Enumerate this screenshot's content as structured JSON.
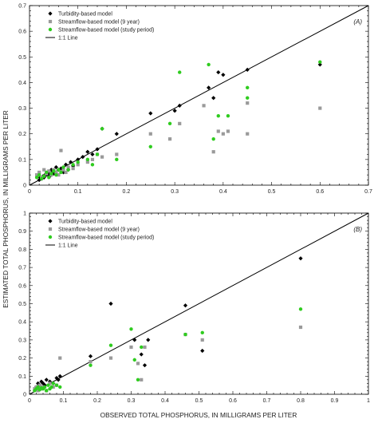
{
  "axis_titles": {
    "x": "OBSERVED TOTAL PHOSPHORUS, IN MILLIGRAMS PER LITER",
    "y": "ESTIMATED TOTAL PHOSPHORUS, IN MILLIGRAMS PER LITER"
  },
  "colors": {
    "turbidity": "#000000",
    "streamflow9": "#9a9a9a",
    "streamflowStudy": "#2fcc1f",
    "line": "#000000"
  },
  "chart_data": [
    {
      "type": "scatter",
      "panel_label": "(A)",
      "xlim": [
        0,
        0.7
      ],
      "ylim": [
        0,
        0.7
      ],
      "xticks": [
        "0",
        "0.1",
        "0.2",
        "0.3",
        "0.4",
        "0.5",
        "0.6",
        "0.7"
      ],
      "yticks": [
        "0",
        "0.1",
        "0.2",
        "0.3",
        "0.4",
        "0.5",
        "0.6",
        "0.7"
      ],
      "legend": {
        "position": "top-left",
        "entries": [
          "Turbidity-based model",
          "Streamflow-based model (9 year)",
          "Streamflow-based model (study period)",
          "1:1 Line"
        ]
      },
      "grid": false,
      "series": [
        {
          "name": "Turbidity-based model",
          "marker": "diamond",
          "x": [
            0.02,
            0.022,
            0.025,
            0.028,
            0.03,
            0.032,
            0.035,
            0.038,
            0.04,
            0.042,
            0.045,
            0.048,
            0.05,
            0.055,
            0.06,
            0.065,
            0.07,
            0.075,
            0.08,
            0.085,
            0.09,
            0.1,
            0.11,
            0.12,
            0.13,
            0.14,
            0.15,
            0.18,
            0.25,
            0.3,
            0.31,
            0.37,
            0.38,
            0.39,
            0.4,
            0.45,
            0.6
          ],
          "y": [
            0.02,
            0.03,
            0.025,
            0.035,
            0.03,
            0.04,
            0.045,
            0.04,
            0.05,
            0.035,
            0.06,
            0.05,
            0.045,
            0.07,
            0.06,
            0.065,
            0.05,
            0.08,
            0.06,
            0.09,
            0.075,
            0.1,
            0.11,
            0.13,
            0.12,
            0.14,
            0.22,
            0.2,
            0.28,
            0.29,
            0.31,
            0.38,
            0.34,
            0.44,
            0.43,
            0.45,
            0.47
          ]
        },
        {
          "name": "Streamflow-based model (9 year)",
          "marker": "square",
          "x": [
            0.015,
            0.02,
            0.025,
            0.03,
            0.035,
            0.04,
            0.045,
            0.05,
            0.055,
            0.06,
            0.065,
            0.07,
            0.075,
            0.08,
            0.09,
            0.1,
            0.12,
            0.13,
            0.14,
            0.15,
            0.18,
            0.25,
            0.29,
            0.31,
            0.36,
            0.38,
            0.39,
            0.4,
            0.41,
            0.45,
            0.45,
            0.6
          ],
          "y": [
            0.04,
            0.05,
            0.03,
            0.06,
            0.045,
            0.055,
            0.04,
            0.06,
            0.05,
            0.04,
            0.135,
            0.06,
            0.05,
            0.07,
            0.065,
            0.08,
            0.09,
            0.1,
            0.12,
            0.11,
            0.12,
            0.2,
            0.18,
            0.24,
            0.31,
            0.13,
            0.21,
            0.2,
            0.21,
            0.32,
            0.2,
            0.3
          ]
        },
        {
          "name": "Streamflow-based model (study period)",
          "marker": "circle",
          "x": [
            0.015,
            0.02,
            0.025,
            0.03,
            0.035,
            0.04,
            0.045,
            0.05,
            0.055,
            0.06,
            0.065,
            0.07,
            0.08,
            0.09,
            0.1,
            0.12,
            0.13,
            0.14,
            0.15,
            0.18,
            0.25,
            0.29,
            0.31,
            0.37,
            0.38,
            0.39,
            0.41,
            0.45,
            0.45,
            0.6
          ],
          "y": [
            0.03,
            0.04,
            0.025,
            0.035,
            0.05,
            0.03,
            0.045,
            0.055,
            0.04,
            0.06,
            0.05,
            0.07,
            0.06,
            0.08,
            0.09,
            0.1,
            0.08,
            0.12,
            0.22,
            0.1,
            0.15,
            0.24,
            0.44,
            0.47,
            0.18,
            0.27,
            0.27,
            0.38,
            0.34,
            0.48
          ]
        }
      ]
    },
    {
      "type": "scatter",
      "panel_label": "(B)",
      "xlim": [
        0,
        1
      ],
      "ylim": [
        0,
        1
      ],
      "xticks": [
        "0",
        "0.1",
        "0.2",
        "0.3",
        "0.4",
        "0.5",
        "0.6",
        "0.7",
        "0.8",
        "0.9",
        "1"
      ],
      "yticks": [
        "0",
        "0.1",
        "0.2",
        "0.3",
        "0.4",
        "0.5",
        "0.6",
        "0.7",
        "0.8",
        "0.9",
        "1"
      ],
      "legend": {
        "position": "top-left",
        "entries": [
          "Turbidity-based model",
          "Streamflow-based model (9 year)",
          "Streamflow-based model (study period)",
          "1:1 Line"
        ]
      },
      "grid": false,
      "series": [
        {
          "name": "Turbidity-based model",
          "marker": "diamond",
          "x": [
            0.02,
            0.025,
            0.03,
            0.035,
            0.04,
            0.045,
            0.05,
            0.06,
            0.07,
            0.08,
            0.085,
            0.09,
            0.18,
            0.24,
            0.31,
            0.33,
            0.34,
            0.35,
            0.46,
            0.51,
            0.8
          ],
          "y": [
            0.04,
            0.06,
            0.05,
            0.07,
            0.06,
            0.05,
            0.08,
            0.07,
            0.06,
            0.09,
            0.08,
            0.1,
            0.21,
            0.5,
            0.3,
            0.22,
            0.16,
            0.3,
            0.49,
            0.24,
            0.75
          ]
        },
        {
          "name": "Streamflow-based model (9 year)",
          "marker": "square",
          "x": [
            0.015,
            0.02,
            0.025,
            0.03,
            0.035,
            0.04,
            0.05,
            0.06,
            0.07,
            0.08,
            0.09,
            0.18,
            0.24,
            0.3,
            0.32,
            0.33,
            0.34,
            0.46,
            0.51,
            0.8
          ],
          "y": [
            0.03,
            0.04,
            0.02,
            0.05,
            0.03,
            0.04,
            0.02,
            0.06,
            0.04,
            0.05,
            0.2,
            0.18,
            0.2,
            0.26,
            0.17,
            0.08,
            0.26,
            0.33,
            0.3,
            0.37
          ]
        },
        {
          "name": "Streamflow-based model (study period)",
          "marker": "circle",
          "x": [
            0.015,
            0.02,
            0.025,
            0.03,
            0.035,
            0.04,
            0.045,
            0.05,
            0.055,
            0.06,
            0.065,
            0.07,
            0.08,
            0.09,
            0.18,
            0.24,
            0.3,
            0.31,
            0.32,
            0.33,
            0.46,
            0.51,
            0.8
          ],
          "y": [
            0.02,
            0.03,
            0.04,
            0.025,
            0.035,
            0.03,
            0.04,
            0.02,
            0.05,
            0.03,
            0.04,
            0.06,
            0.05,
            0.04,
            0.16,
            0.27,
            0.36,
            0.19,
            0.08,
            0.26,
            0.33,
            0.34,
            0.47
          ]
        }
      ]
    }
  ]
}
